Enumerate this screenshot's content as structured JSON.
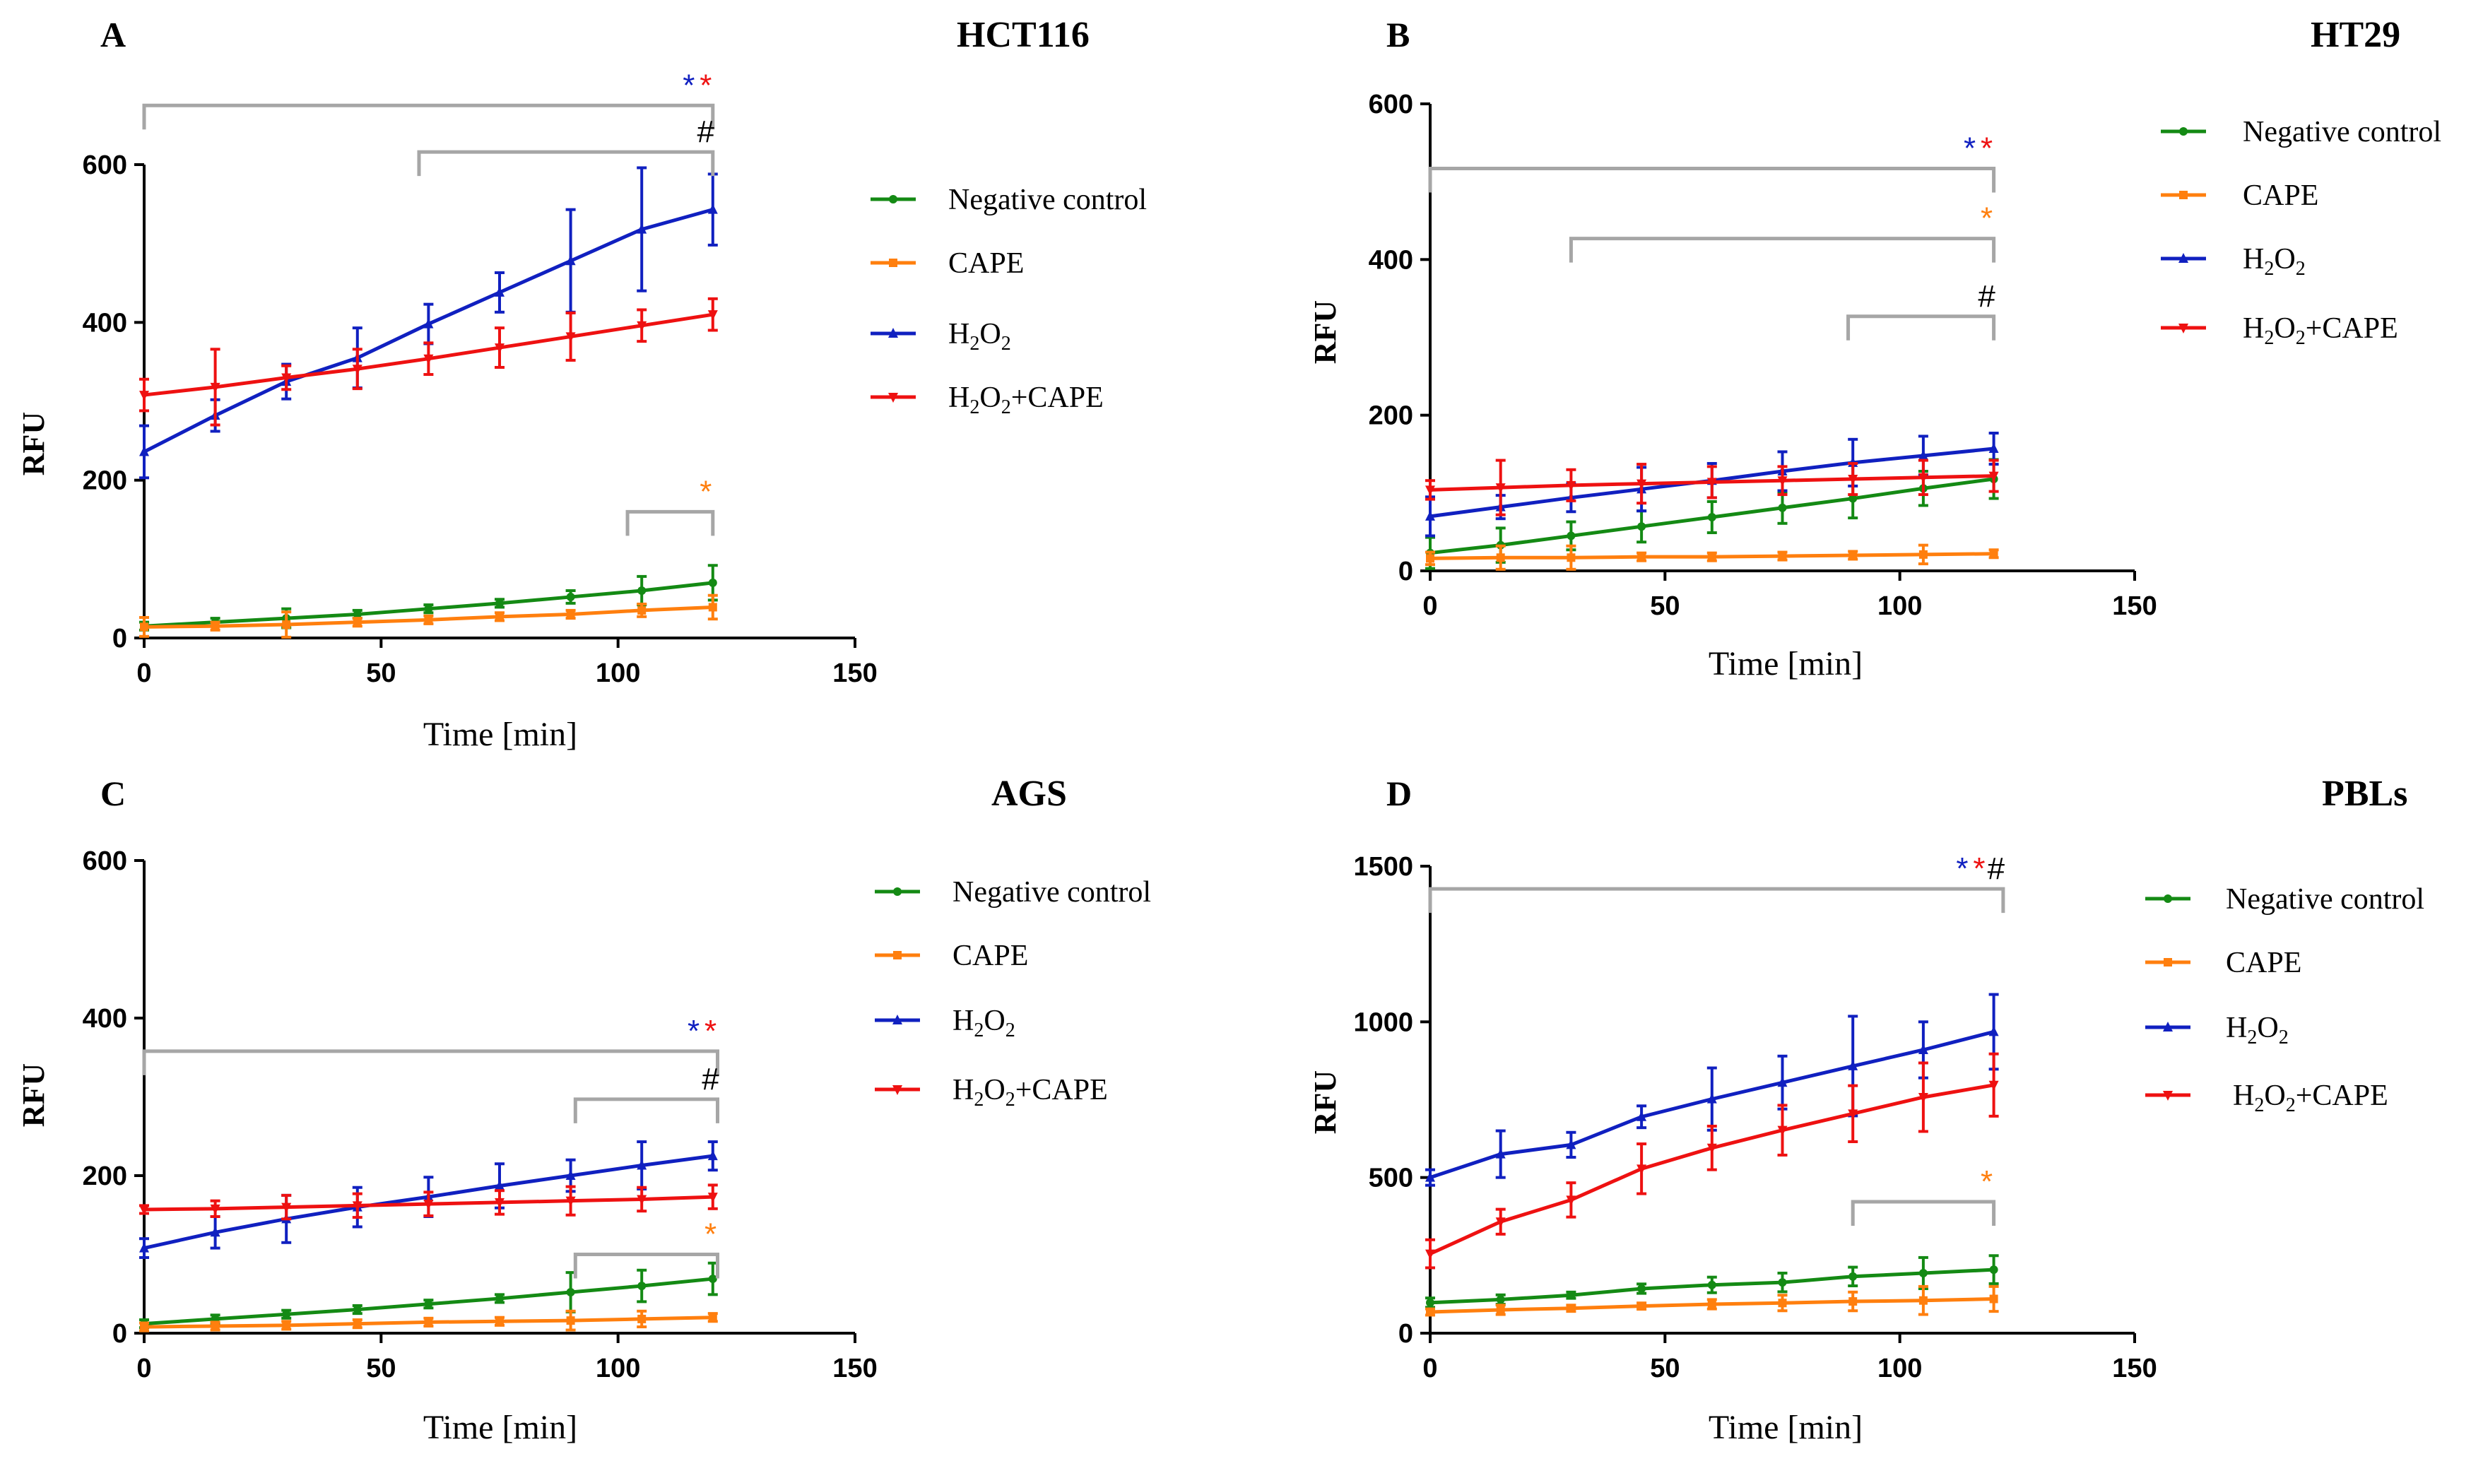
{
  "series_names": [
    "Negative control",
    "CAPE",
    "H2O2",
    "H2O2+CAPE"
  ],
  "colors": {
    "Negative control": "#148a14",
    "CAPE": "#ff7f0e",
    "H2O2": "#1020c0",
    "H2O2+CAPE": "#ee1111",
    "bracket": "#a6a6a6"
  },
  "legend_texts": {
    "neg": "Negative control",
    "cape": "CAPE",
    "h2o2_main": "H",
    "h2o2_sub1": "2",
    "h2o2_mid": "O",
    "h2o2_sub2": "2",
    "combo_main": "H",
    "combo_sub1": "2",
    "combo_mid": "O",
    "combo_sub2": "2",
    "combo_tail": "+CAPE"
  },
  "chart_data": [
    {
      "panel": "A",
      "title": "HCT116",
      "type": "line",
      "xlabel": "Time [min]",
      "ylabel": "RFU",
      "xlim": [
        0,
        150
      ],
      "ylim": [
        0,
        600
      ],
      "xticks": [
        "0",
        "50",
        "100",
        "150"
      ],
      "yticks": [
        "0",
        "200",
        "400",
        "600"
      ],
      "x": [
        0,
        15,
        30,
        45,
        60,
        75,
        90,
        105,
        120
      ],
      "series": [
        {
          "name": "Negative control",
          "values": [
            15,
            20,
            25,
            30,
            37,
            44,
            52,
            60,
            70
          ],
          "err": [
            5,
            5,
            12,
            5,
            5,
            5,
            8,
            18,
            22
          ]
        },
        {
          "name": "CAPE",
          "values": [
            14,
            15,
            17,
            20,
            23,
            27,
            30,
            35,
            39
          ],
          "err": [
            12,
            5,
            16,
            5,
            5,
            5,
            5,
            8,
            15
          ]
        },
        {
          "name": "H2O2",
          "values": [
            236,
            282,
            325,
            355,
            398,
            438,
            478,
            518,
            543
          ],
          "err": [
            33,
            20,
            22,
            38,
            25,
            25,
            65,
            78,
            45
          ]
        },
        {
          "name": "H2O2+CAPE",
          "values": [
            308,
            318,
            330,
            341,
            354,
            368,
            382,
            396,
            410
          ],
          "err": [
            20,
            48,
            15,
            25,
            20,
            25,
            30,
            20,
            20
          ]
        }
      ],
      "brackets": [
        {
          "from": 0,
          "to": 120,
          "y": 675,
          "marks": [
            {
              "text": "*",
              "color": "#1020c0"
            },
            {
              "text": "*",
              "color": "#ee1111"
            }
          ]
        },
        {
          "from": 58,
          "to": 120,
          "y": 616,
          "marks": [
            {
              "text": "#",
              "color": "#000000"
            }
          ]
        },
        {
          "from": 102,
          "to": 120,
          "y": 160,
          "marks": [
            {
              "text": "*",
              "color": "#ff7f0e"
            }
          ]
        }
      ]
    },
    {
      "panel": "B",
      "title": "HT29",
      "type": "line",
      "xlabel": "Time [min]",
      "ylabel": "RFU",
      "xlim": [
        0,
        150
      ],
      "ylim": [
        0,
        600
      ],
      "xticks": [
        "0",
        "50",
        "100",
        "150"
      ],
      "yticks": [
        "0",
        "200",
        "400",
        "600"
      ],
      "x": [
        0,
        15,
        30,
        45,
        60,
        75,
        90,
        105,
        120
      ],
      "series": [
        {
          "name": "Negative control",
          "values": [
            23,
            33,
            45,
            57,
            69,
            81,
            93,
            106,
            118
          ],
          "err": [
            20,
            22,
            18,
            20,
            20,
            20,
            25,
            22,
            25
          ]
        },
        {
          "name": "CAPE",
          "values": [
            16,
            17,
            17,
            18,
            18,
            19,
            20,
            21,
            22
          ],
          "err": [
            8,
            15,
            15,
            5,
            5,
            5,
            5,
            12,
            5
          ]
        },
        {
          "name": "H2O2",
          "values": [
            70,
            82,
            94,
            105,
            116,
            128,
            139,
            148,
            157
          ],
          "err": [
            25,
            15,
            18,
            28,
            22,
            25,
            30,
            25,
            20
          ]
        },
        {
          "name": "H2O2+CAPE",
          "values": [
            104,
            107,
            110,
            112,
            114,
            116,
            118,
            120,
            122
          ],
          "err": [
            12,
            35,
            20,
            25,
            20,
            18,
            20,
            22,
            20
          ]
        }
      ],
      "brackets": [
        {
          "from": 0,
          "to": 120,
          "y": 517,
          "marks": [
            {
              "text": "*",
              "color": "#1020c0"
            },
            {
              "text": "*",
              "color": "#ee1111"
            }
          ]
        },
        {
          "from": 30,
          "to": 120,
          "y": 427,
          "marks": [
            {
              "text": "*",
              "color": "#ff7f0e"
            }
          ]
        },
        {
          "from": 89,
          "to": 120,
          "y": 327,
          "marks": [
            {
              "text": "#",
              "color": "#000000"
            }
          ]
        }
      ]
    },
    {
      "panel": "C",
      "title": "AGS",
      "type": "line",
      "xlabel": "Time [min]",
      "ylabel": "RFU",
      "xlim": [
        0,
        150
      ],
      "ylim": [
        0,
        600
      ],
      "xticks": [
        "0",
        "50",
        "100",
        "150"
      ],
      "yticks": [
        "0",
        "200",
        "400",
        "600"
      ],
      "x": [
        0,
        15,
        30,
        45,
        60,
        75,
        90,
        105,
        120
      ],
      "series": [
        {
          "name": "Negative control",
          "values": [
            12,
            18,
            24,
            30,
            37,
            44,
            52,
            60,
            69
          ],
          "err": [
            5,
            5,
            5,
            5,
            5,
            5,
            25,
            20,
            20
          ]
        },
        {
          "name": "CAPE",
          "values": [
            8,
            9,
            10,
            12,
            14,
            15,
            16,
            18,
            20
          ],
          "err": [
            5,
            5,
            5,
            5,
            5,
            5,
            12,
            10,
            5
          ]
        },
        {
          "name": "H2O2",
          "values": [
            108,
            128,
            145,
            160,
            173,
            187,
            200,
            213,
            225
          ],
          "err": [
            12,
            20,
            30,
            25,
            25,
            28,
            20,
            30,
            18
          ]
        },
        {
          "name": "H2O2+CAPE",
          "values": [
            157,
            158,
            160,
            162,
            164,
            166,
            168,
            170,
            173
          ],
          "err": [
            5,
            10,
            15,
            15,
            15,
            15,
            18,
            15,
            15
          ]
        }
      ],
      "brackets": [
        {
          "from": 0,
          "to": 121,
          "y": 358,
          "marks": [
            {
              "text": "*",
              "color": "#1020c0"
            },
            {
              "text": "*",
              "color": "#ee1111"
            }
          ]
        },
        {
          "from": 91,
          "to": 121,
          "y": 297,
          "marks": [
            {
              "text": "#",
              "color": "#000000"
            }
          ]
        },
        {
          "from": 91,
          "to": 121,
          "y": 100,
          "marks": [
            {
              "text": "*",
              "color": "#ff7f0e"
            }
          ]
        }
      ]
    },
    {
      "panel": "D",
      "title": "PBLs",
      "type": "line",
      "xlabel": "Time [min]",
      "ylabel": "RFU",
      "xlim": [
        0,
        150
      ],
      "ylim": [
        0,
        1500
      ],
      "xticks": [
        "0",
        "50",
        "100",
        "150"
      ],
      "yticks": [
        "0",
        "500",
        "1000",
        "1500"
      ],
      "x": [
        0,
        15,
        30,
        45,
        60,
        75,
        90,
        105,
        120
      ],
      "series": [
        {
          "name": "Negative control",
          "values": [
            98,
            108,
            122,
            143,
            155,
            163,
            182,
            193,
            204
          ],
          "err": [
            15,
            15,
            10,
            15,
            25,
            30,
            30,
            50,
            45
          ]
        },
        {
          "name": "CAPE",
          "values": [
            68,
            75,
            80,
            87,
            93,
            97,
            102,
            105,
            110
          ],
          "err": [
            10,
            15,
            10,
            10,
            15,
            25,
            30,
            45,
            40
          ]
        },
        {
          "name": "H2O2",
          "values": [
            500,
            575,
            605,
            695,
            752,
            805,
            858,
            910,
            968
          ],
          "err": [
            25,
            75,
            40,
            35,
            100,
            85,
            160,
            90,
            120
          ]
        },
        {
          "name": "H2O2+CAPE",
          "values": [
            255,
            358,
            428,
            528,
            595,
            652,
            705,
            758,
            797
          ],
          "err": [
            45,
            40,
            55,
            80,
            70,
            80,
            90,
            110,
            100
          ]
        }
      ],
      "brackets": [
        {
          "from": 0,
          "to": 122,
          "y": 1427,
          "marks": [
            {
              "text": "*",
              "color": "#1020c0"
            },
            {
              "text": "*",
              "color": "#ee1111"
            },
            {
              "text": "#",
              "color": "#000000"
            }
          ]
        },
        {
          "from": 90,
          "to": 120,
          "y": 422,
          "marks": [
            {
              "text": "*",
              "color": "#ff7f0e"
            }
          ]
        }
      ]
    }
  ]
}
